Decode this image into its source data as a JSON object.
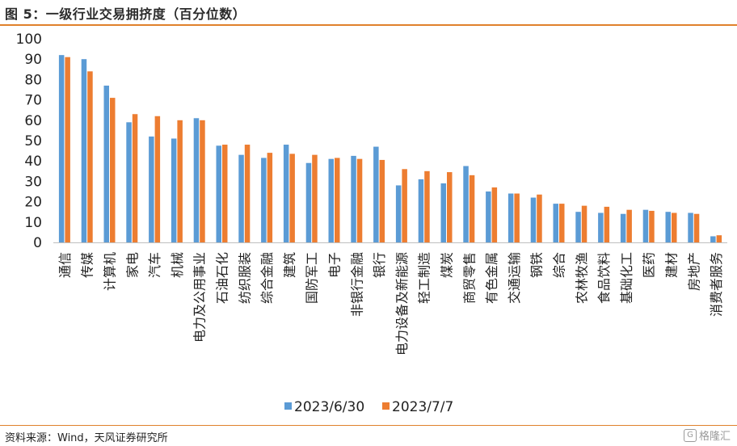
{
  "header": {
    "title": "图 5：一级行业交易拥挤度（百分位数）"
  },
  "footer": {
    "source": "资料来源：Wind，天风证券研究所",
    "watermark": "格隆汇",
    "watermark_icon": "G"
  },
  "colors": {
    "series1": "#5b9bd5",
    "series2": "#ed7d31",
    "rule": "#e0812b",
    "axis": "#bfbfbf"
  },
  "chart_data": {
    "type": "bar",
    "title": "图 5：一级行业交易拥挤度（百分位数）",
    "xlabel": "",
    "ylabel": "",
    "ylim": [
      0,
      100
    ],
    "yticks": [
      0,
      10,
      20,
      30,
      40,
      50,
      60,
      70,
      80,
      90,
      100
    ],
    "grid": false,
    "legend_position": "bottom",
    "categories": [
      "通信",
      "传媒",
      "计算机",
      "家电",
      "汽车",
      "机械",
      "电力及公用事业",
      "石油石化",
      "纺织服装",
      "综合金融",
      "建筑",
      "国防军工",
      "电子",
      "非银行金融",
      "银行",
      "电力设备及新能源",
      "轻工制造",
      "煤炭",
      "商贸零售",
      "有色金属",
      "交通运输",
      "钢铁",
      "综合",
      "农林牧渔",
      "食品饮料",
      "基础化工",
      "医药",
      "建材",
      "房地产",
      "消费者服务"
    ],
    "series": [
      {
        "name": "2023/6/30",
        "values": [
          92,
          90,
          77,
          59,
          52,
          51,
          61,
          47.5,
          43,
          41.5,
          48,
          39,
          41,
          42.5,
          47,
          28,
          31,
          29,
          37.5,
          25,
          24,
          22,
          19,
          15,
          14.5,
          14,
          16,
          15,
          14.5,
          3
        ]
      },
      {
        "name": "2023/7/7",
        "values": [
          91,
          84,
          71,
          63,
          62,
          60,
          60,
          48,
          48,
          44,
          43.5,
          43,
          41.5,
          41,
          40.5,
          36,
          35,
          34.5,
          33,
          27,
          24,
          23.5,
          19,
          18,
          17.5,
          16,
          15.5,
          14.5,
          14,
          3.5
        ]
      }
    ]
  }
}
